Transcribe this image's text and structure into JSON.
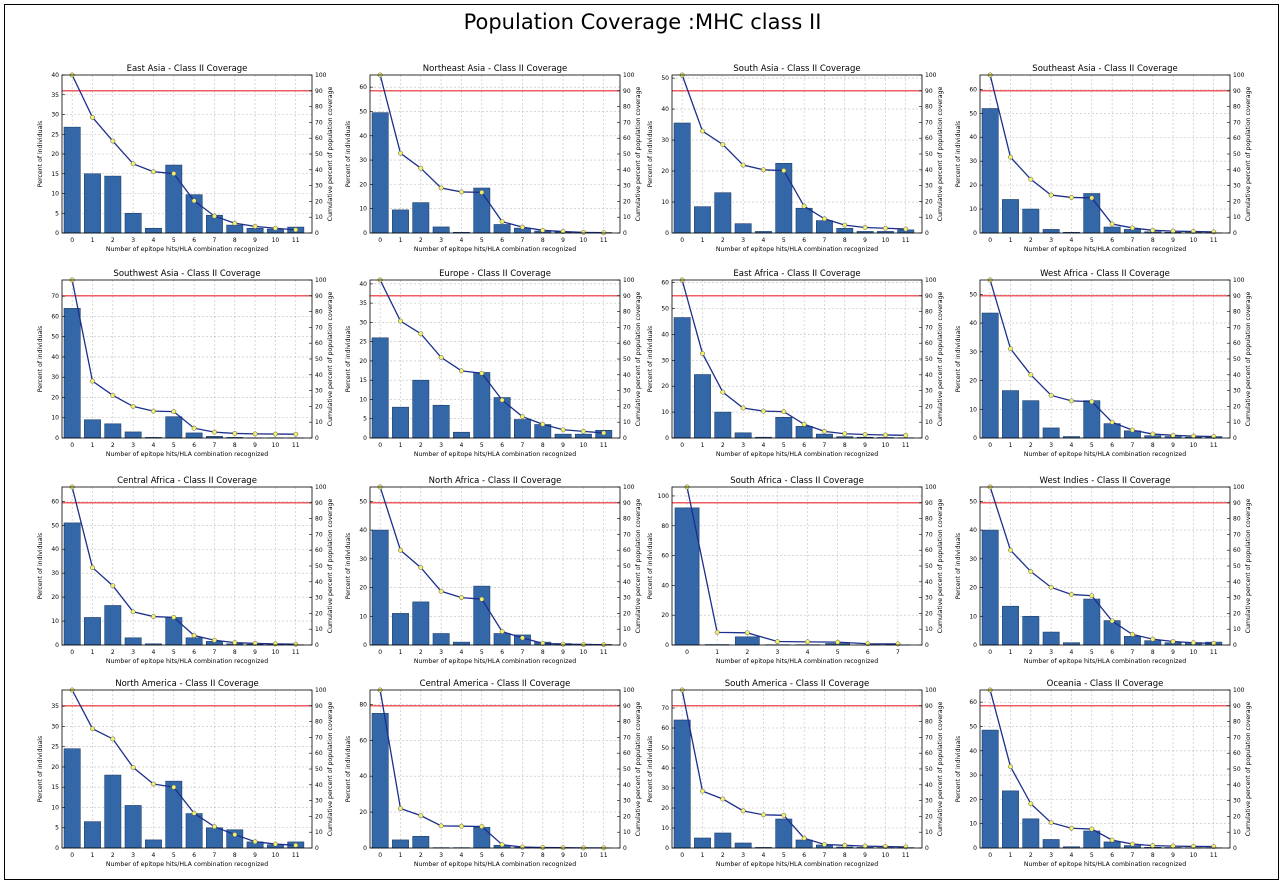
{
  "page_title": "Population Coverage :MHC class II",
  "colors": {
    "bar": "#3467a8",
    "bar_edge": "#1b3d6b",
    "line": "#1c2f8c",
    "marker": "#f2f06b",
    "threshold": "#e8292b",
    "grid": "#bdbdbd"
  },
  "chart_data": [
    {
      "type": "bar",
      "title": "East Asia - Class II Coverage",
      "xlabel": "Number of epitope hits/HLA combination recognized",
      "ylabel": "Percent of individuals",
      "y2label": "Cumulative percent of population coverage",
      "categories": [
        "0",
        "1",
        "2",
        "3",
        "4",
        "5",
        "6",
        "7",
        "8",
        "9",
        "10",
        "11"
      ],
      "ylim": [
        0,
        40
      ],
      "yticks": [
        0,
        5,
        10,
        15,
        20,
        25,
        30,
        35,
        40
      ],
      "y2lim": [
        0,
        100
      ],
      "y2ticks": [
        0,
        10,
        20,
        30,
        40,
        50,
        60,
        70,
        80,
        90,
        100
      ],
      "values": [
        26.8,
        15.0,
        14.4,
        5.0,
        1.2,
        17.2,
        9.7,
        4.5,
        2.0,
        1.2,
        1.0,
        1.5
      ],
      "cumulative": [
        100,
        73.2,
        58.2,
        43.8,
        38.8,
        37.6,
        20.4,
        10.7,
        6.2,
        4.2,
        3.0,
        2.0
      ],
      "threshold": 90,
      "grid": true
    },
    {
      "type": "bar",
      "title": "Northeast Asia - Class II Coverage",
      "xlabel": "Number of epitope hits/HLA combination recognized",
      "ylabel": "Percent of individuals",
      "y2label": "Cumulative percent of population coverage",
      "categories": [
        "0",
        "1",
        "2",
        "3",
        "4",
        "5",
        "6",
        "7",
        "8",
        "9",
        "10",
        "11"
      ],
      "ylim": [
        0,
        65
      ],
      "yticks": [
        0,
        10,
        20,
        30,
        40,
        50,
        60
      ],
      "y2lim": [
        0,
        100
      ],
      "y2ticks": [
        0,
        10,
        20,
        30,
        40,
        50,
        60,
        70,
        80,
        90,
        100
      ],
      "values": [
        49.5,
        9.5,
        12.5,
        2.5,
        0.3,
        18.5,
        3.5,
        2.0,
        0.8,
        0.5,
        0.3,
        0.2
      ],
      "cumulative": [
        100,
        50.5,
        41.0,
        28.5,
        26.0,
        25.7,
        7.2,
        3.7,
        1.7,
        0.9,
        0.4,
        0.2
      ],
      "threshold": 90,
      "grid": true
    },
    {
      "type": "bar",
      "title": "South Asia - Class II Coverage",
      "xlabel": "Number of epitope hits/HLA combination recognized",
      "ylabel": "Percent of individuals",
      "y2label": "Cumulative percent of population coverage",
      "categories": [
        "0",
        "1",
        "2",
        "3",
        "4",
        "5",
        "6",
        "7",
        "8",
        "9",
        "10",
        "11"
      ],
      "ylim": [
        0,
        51
      ],
      "yticks": [
        0,
        10,
        20,
        30,
        40,
        50
      ],
      "y2lim": [
        0,
        100
      ],
      "y2ticks": [
        0,
        10,
        20,
        30,
        40,
        50,
        60,
        70,
        80,
        90,
        100
      ],
      "values": [
        35.5,
        8.5,
        13.0,
        3.0,
        0.5,
        22.5,
        8.0,
        4.0,
        1.5,
        0.5,
        0.5,
        1.0
      ],
      "cumulative": [
        100,
        64.5,
        56.0,
        43.0,
        40.0,
        39.5,
        17.0,
        9.0,
        5.0,
        3.5,
        3.0,
        2.5
      ],
      "threshold": 90,
      "grid": true
    },
    {
      "type": "bar",
      "title": "Southeast Asia - Class II Coverage",
      "xlabel": "Number of epitope hits/HLA combination recognized",
      "ylabel": "Percent of individuals",
      "y2label": "Cumulative percent of population coverage",
      "categories": [
        "0",
        "1",
        "2",
        "3",
        "4",
        "5",
        "6",
        "7",
        "8",
        "9",
        "10",
        "11"
      ],
      "ylim": [
        0,
        66
      ],
      "yticks": [
        0,
        10,
        20,
        30,
        40,
        50,
        60
      ],
      "y2lim": [
        0,
        100
      ],
      "y2ticks": [
        0,
        10,
        20,
        30,
        40,
        50,
        60,
        70,
        80,
        90,
        100
      ],
      "values": [
        52.0,
        14.0,
        10.0,
        1.5,
        0.3,
        16.5,
        2.5,
        1.5,
        0.5,
        0.3,
        0.2,
        0.1
      ],
      "cumulative": [
        100,
        48.0,
        34.0,
        24.0,
        22.5,
        22.2,
        5.7,
        3.2,
        1.7,
        1.2,
        0.9,
        0.7
      ],
      "threshold": 90,
      "grid": true
    },
    {
      "type": "bar",
      "title": "Southwest Asia - Class II Coverage",
      "xlabel": "Number of epitope hits/HLA combination recognized",
      "ylabel": "Percent of individuals",
      "y2label": "Cumulative percent of population coverage",
      "categories": [
        "0",
        "1",
        "2",
        "3",
        "4",
        "5",
        "6",
        "7",
        "8",
        "9",
        "10",
        "11"
      ],
      "ylim": [
        0,
        78
      ],
      "yticks": [
        0,
        10,
        20,
        30,
        40,
        50,
        60,
        70
      ],
      "y2lim": [
        0,
        100
      ],
      "y2ticks": [
        0,
        10,
        20,
        30,
        40,
        50,
        60,
        70,
        80,
        90,
        100
      ],
      "values": [
        64.0,
        9.0,
        7.0,
        3.0,
        0.3,
        10.5,
        2.5,
        0.8,
        0.3,
        0.1,
        0.1,
        0.1
      ],
      "cumulative": [
        100,
        36.0,
        27.0,
        20.0,
        17.0,
        16.7,
        6.2,
        3.7,
        2.9,
        2.6,
        2.5,
        2.4
      ],
      "threshold": 90,
      "grid": true
    },
    {
      "type": "bar",
      "title": "Europe - Class II Coverage",
      "xlabel": "Number of epitope hits/HLA combination recognized",
      "ylabel": "Percent of individuals",
      "y2label": "Cumulative percent of population coverage",
      "categories": [
        "0",
        "1",
        "2",
        "3",
        "4",
        "5",
        "6",
        "7",
        "8",
        "9",
        "10",
        "11"
      ],
      "ylim": [
        0,
        41
      ],
      "yticks": [
        0,
        5,
        10,
        15,
        20,
        25,
        30,
        35,
        40
      ],
      "y2lim": [
        0,
        100
      ],
      "y2ticks": [
        0,
        10,
        20,
        30,
        40,
        50,
        60,
        70,
        80,
        90,
        100
      ],
      "values": [
        26.0,
        8.0,
        15.0,
        8.5,
        1.5,
        17.0,
        10.5,
        4.8,
        3.5,
        1.0,
        1.0,
        2.0
      ],
      "cumulative": [
        100,
        74.0,
        66.0,
        51.0,
        42.5,
        41.0,
        24.0,
        13.5,
        8.7,
        5.2,
        4.2,
        3.2
      ],
      "threshold": 90,
      "grid": true
    },
    {
      "type": "bar",
      "title": "East Africa - Class II Coverage",
      "xlabel": "Number of epitope hits/HLA combination recognized",
      "ylabel": "Percent of individuals",
      "y2label": "Cumulative percent of population coverage",
      "categories": [
        "0",
        "1",
        "2",
        "3",
        "4",
        "5",
        "6",
        "7",
        "8",
        "9",
        "10",
        "11"
      ],
      "ylim": [
        0,
        61
      ],
      "yticks": [
        0,
        10,
        20,
        30,
        40,
        50,
        60
      ],
      "y2lim": [
        0,
        100
      ],
      "y2ticks": [
        0,
        10,
        20,
        30,
        40,
        50,
        60,
        70,
        80,
        90,
        100
      ],
      "values": [
        46.5,
        24.5,
        10.0,
        2.0,
        0.3,
        8.0,
        4.5,
        1.5,
        0.5,
        0.3,
        0.2,
        0.1
      ],
      "cumulative": [
        100,
        53.5,
        29.0,
        19.0,
        17.0,
        16.7,
        8.7,
        4.2,
        2.7,
        2.2,
        1.9,
        1.7
      ],
      "threshold": 90,
      "grid": true
    },
    {
      "type": "bar",
      "title": "West Africa - Class II Coverage",
      "xlabel": "Number of epitope hits/HLA combination recognized",
      "ylabel": "Percent of individuals",
      "y2label": "Cumulative percent of population coverage",
      "categories": [
        "0",
        "1",
        "2",
        "3",
        "4",
        "5",
        "6",
        "7",
        "8",
        "9",
        "10",
        "11"
      ],
      "ylim": [
        0,
        55
      ],
      "yticks": [
        0,
        10,
        20,
        30,
        40,
        50
      ],
      "y2lim": [
        0,
        100
      ],
      "y2ticks": [
        0,
        10,
        20,
        30,
        40,
        50,
        60,
        70,
        80,
        90,
        100
      ],
      "values": [
        43.5,
        16.5,
        13.0,
        3.5,
        0.5,
        13.0,
        5.0,
        2.5,
        0.8,
        0.5,
        0.3,
        0.5
      ],
      "cumulative": [
        100,
        56.5,
        40.0,
        27.0,
        23.5,
        23.0,
        10.0,
        5.0,
        2.5,
        1.7,
        1.2,
        0.9
      ],
      "threshold": 90,
      "grid": true
    },
    {
      "type": "bar",
      "title": "Central Africa - Class II Coverage",
      "xlabel": "Number of epitope hits/HLA combination recognized",
      "ylabel": "Percent of individuals",
      "y2label": "Cumulative percent of population coverage",
      "categories": [
        "0",
        "1",
        "2",
        "3",
        "4",
        "5",
        "6",
        "7",
        "8",
        "9",
        "10",
        "11"
      ],
      "ylim": [
        0,
        66
      ],
      "yticks": [
        0,
        10,
        20,
        30,
        40,
        50,
        60
      ],
      "y2lim": [
        0,
        100
      ],
      "y2ticks": [
        0,
        10,
        20,
        30,
        40,
        50,
        60,
        70,
        80,
        90,
        100
      ],
      "values": [
        51.0,
        11.5,
        16.5,
        3.0,
        0.5,
        11.5,
        3.0,
        1.5,
        0.5,
        0.3,
        0.2,
        0.1
      ],
      "cumulative": [
        100,
        49.0,
        37.5,
        21.0,
        18.0,
        17.5,
        6.0,
        3.0,
        1.5,
        1.0,
        0.7,
        0.5
      ],
      "threshold": 90,
      "grid": true
    },
    {
      "type": "bar",
      "title": "North Africa - Class II Coverage",
      "xlabel": "Number of epitope hits/HLA combination recognized",
      "ylabel": "Percent of individuals",
      "y2label": "Cumulative percent of population coverage",
      "categories": [
        "0",
        "1",
        "2",
        "3",
        "4",
        "5",
        "6",
        "7",
        "8",
        "9",
        "10",
        "11"
      ],
      "ylim": [
        0,
        55
      ],
      "yticks": [
        0,
        10,
        20,
        30,
        40,
        50
      ],
      "y2lim": [
        0,
        100
      ],
      "y2ticks": [
        0,
        10,
        20,
        30,
        40,
        50,
        60,
        70,
        80,
        90,
        100
      ],
      "values": [
        40.0,
        11.0,
        15.0,
        4.0,
        1.0,
        20.5,
        4.0,
        3.5,
        1.0,
        0.5,
        0.3,
        0.2
      ],
      "cumulative": [
        100,
        60.0,
        49.0,
        34.0,
        30.0,
        29.0,
        8.5,
        4.5,
        1.0,
        0.5,
        0.3,
        0.2
      ],
      "threshold": 90,
      "grid": true
    },
    {
      "type": "bar",
      "title": "South Africa - Class II Coverage",
      "xlabel": "Number of epitope hits/HLA combination recognized",
      "ylabel": "Percent of individuals",
      "y2label": "Cumulative percent of population coverage",
      "categories": [
        "0",
        "1",
        "2",
        "3",
        "4",
        "5",
        "6",
        "7"
      ],
      "ylim": [
        0,
        106
      ],
      "yticks": [
        0,
        20,
        40,
        60,
        80,
        100
      ],
      "y2lim": [
        0,
        100
      ],
      "y2ticks": [
        0,
        10,
        20,
        30,
        40,
        50,
        60,
        70,
        80,
        90,
        100
      ],
      "values": [
        92.0,
        0.3,
        5.5,
        0.2,
        0.2,
        1.0,
        0.1,
        0.1
      ],
      "cumulative": [
        100,
        8.0,
        7.7,
        2.2,
        2.0,
        1.8,
        0.8,
        0.7
      ],
      "threshold": 90,
      "grid": true
    },
    {
      "type": "bar",
      "title": "West Indies - Class II Coverage",
      "xlabel": "Number of epitope hits/HLA combination recognized",
      "ylabel": "Percent of individuals",
      "y2label": "Cumulative percent of population coverage",
      "categories": [
        "0",
        "1",
        "2",
        "3",
        "4",
        "5",
        "6",
        "7",
        "8",
        "9",
        "10",
        "11"
      ],
      "ylim": [
        0,
        55
      ],
      "yticks": [
        0,
        10,
        20,
        30,
        40,
        50
      ],
      "y2lim": [
        0,
        100
      ],
      "y2ticks": [
        0,
        10,
        20,
        30,
        40,
        50,
        60,
        70,
        80,
        90,
        100
      ],
      "values": [
        40.0,
        13.5,
        10.0,
        4.5,
        0.8,
        16.0,
        8.5,
        3.0,
        1.5,
        0.8,
        0.8,
        1.0
      ],
      "cumulative": [
        100,
        60.0,
        46.5,
        36.5,
        32.0,
        31.2,
        15.2,
        6.7,
        3.7,
        2.2,
        1.4,
        1.0
      ],
      "threshold": 90,
      "grid": true
    },
    {
      "type": "bar",
      "title": "North America - Class II Coverage",
      "xlabel": "Number of epitope hits/HLA combination recognized",
      "ylabel": "Percent of individuals",
      "y2label": "Cumulative percent of population coverage",
      "categories": [
        "0",
        "1",
        "2",
        "3",
        "4",
        "5",
        "6",
        "7",
        "8",
        "9",
        "10",
        "11"
      ],
      "ylim": [
        0,
        39
      ],
      "yticks": [
        0,
        5,
        10,
        15,
        20,
        25,
        30,
        35
      ],
      "y2lim": [
        0,
        100
      ],
      "y2ticks": [
        0,
        10,
        20,
        30,
        40,
        50,
        60,
        70,
        80,
        90,
        100
      ],
      "values": [
        24.5,
        6.5,
        18.0,
        10.5,
        2.0,
        16.5,
        8.5,
        5.0,
        4.5,
        1.5,
        0.8,
        1.5
      ],
      "cumulative": [
        100,
        75.5,
        69.0,
        51.0,
        40.5,
        38.5,
        22.0,
        13.5,
        8.5,
        4.0,
        2.5,
        1.7
      ],
      "threshold": 90,
      "grid": true
    },
    {
      "type": "bar",
      "title": "Central America - Class II Coverage",
      "xlabel": "Number of epitope hits/HLA combination recognized",
      "ylabel": "Percent of individuals",
      "y2label": "Cumulative percent of population coverage",
      "categories": [
        "0",
        "1",
        "2",
        "3",
        "4",
        "5",
        "6",
        "7",
        "8",
        "9",
        "10",
        "11"
      ],
      "ylim": [
        0,
        88
      ],
      "yticks": [
        0,
        20,
        40,
        60,
        80
      ],
      "y2lim": [
        0,
        100
      ],
      "y2ticks": [
        0,
        10,
        20,
        30,
        40,
        50,
        60,
        70,
        80,
        90,
        100
      ],
      "values": [
        75.0,
        4.5,
        6.5,
        0.2,
        0.2,
        11.5,
        1.5,
        0.3,
        0.2,
        0.1,
        0.1,
        0.1
      ],
      "cumulative": [
        100,
        25.0,
        20.5,
        14.0,
        13.8,
        13.6,
        2.1,
        0.6,
        0.3,
        0.2,
        0.1,
        0.1
      ],
      "threshold": 90,
      "grid": true
    },
    {
      "type": "bar",
      "title": "South America - Class II Coverage",
      "xlabel": "Number of epitope hits/HLA combination recognized",
      "ylabel": "Percent of individuals",
      "y2label": "Cumulative percent of population coverage",
      "categories": [
        "0",
        "1",
        "2",
        "3",
        "4",
        "5",
        "6",
        "7",
        "8",
        "9",
        "10",
        "11"
      ],
      "ylim": [
        0,
        79
      ],
      "yticks": [
        0,
        10,
        20,
        30,
        40,
        50,
        60,
        70
      ],
      "y2lim": [
        0,
        100
      ],
      "y2ticks": [
        0,
        10,
        20,
        30,
        40,
        50,
        60,
        70,
        80,
        90,
        100
      ],
      "values": [
        64.0,
        5.0,
        7.5,
        2.5,
        0.3,
        14.5,
        4.0,
        1.5,
        0.5,
        0.3,
        0.2,
        0.2
      ],
      "cumulative": [
        100,
        36.0,
        31.0,
        23.5,
        21.0,
        20.7,
        6.2,
        2.2,
        1.7,
        1.2,
        0.9,
        0.7
      ],
      "threshold": 90,
      "grid": true
    },
    {
      "type": "bar",
      "title": "Oceania - Class II Coverage",
      "xlabel": "Number of epitope hits/HLA combination recognized",
      "ylabel": "Percent of individuals",
      "y2label": "Cumulative percent of population coverage",
      "categories": [
        "0",
        "1",
        "2",
        "3",
        "4",
        "5",
        "6",
        "7",
        "8",
        "9",
        "10",
        "11"
      ],
      "ylim": [
        0,
        65
      ],
      "yticks": [
        0,
        10,
        20,
        30,
        40,
        50,
        60
      ],
      "y2lim": [
        0,
        100
      ],
      "y2ticks": [
        0,
        10,
        20,
        30,
        40,
        50,
        60,
        70,
        80,
        90,
        100
      ],
      "values": [
        48.5,
        23.5,
        12.0,
        3.5,
        0.5,
        7.0,
        2.5,
        1.0,
        0.3,
        0.2,
        0.1,
        0.1
      ],
      "cumulative": [
        100,
        51.5,
        28.0,
        16.0,
        12.5,
        12.0,
        5.0,
        2.5,
        1.5,
        1.2,
        1.0,
        0.9
      ],
      "threshold": 90,
      "grid": true
    }
  ]
}
